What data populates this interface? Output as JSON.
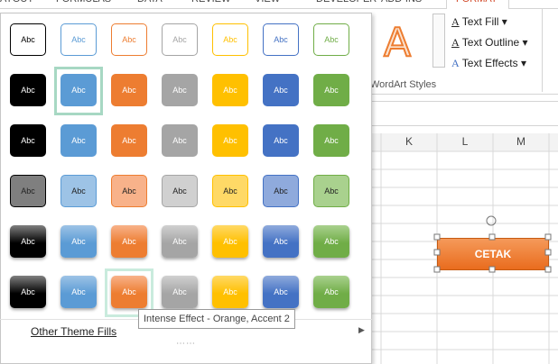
{
  "ribbon": {
    "tabs": [
      "AYOUT",
      "FORMULAS",
      "DATA",
      "REVIEW",
      "VIEW",
      "DEVELOPER",
      "ADD-INS",
      "FORMAT"
    ],
    "wordart_icon": "A",
    "text_fill": "Text Fill",
    "text_outline": "Text Outline",
    "text_effects": "Text Effects",
    "group_label": "WordArt Styles"
  },
  "gallery": {
    "rows": [
      [
        "Abc",
        "Abc",
        "Abc",
        "Abc",
        "Abc",
        "Abc",
        "Abc"
      ],
      [
        "Abc",
        "Abc",
        "Abc",
        "Abc",
        "Abc",
        "Abc",
        "Abc"
      ],
      [
        "Abc",
        "Abc",
        "Abc",
        "Abc",
        "Abc",
        "Abc",
        "Abc"
      ],
      [
        "Abc",
        "Abc",
        "Abc",
        "Abc",
        "Abc",
        "Abc",
        "Abc"
      ],
      [
        "Abc",
        "Abc",
        "Abc",
        "Abc",
        "Abc",
        "Abc",
        "Abc"
      ],
      [
        "Abc",
        "Abc",
        "Abc",
        "Abc",
        "Abc",
        "Abc",
        "Abc"
      ]
    ],
    "more": "Other Theme Fills",
    "tooltip": "Intense Effect - Orange, Accent 2"
  },
  "sheet": {
    "columns": [
      "K",
      "L",
      "M"
    ],
    "button": "CETAK"
  }
}
